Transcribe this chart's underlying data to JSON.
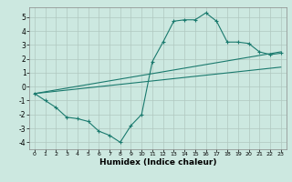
{
  "title": "",
  "xlabel": "Humidex (Indice chaleur)",
  "ylabel": "",
  "bg_color": "#cce8e0",
  "grid_color": "#b0c8c0",
  "line_color": "#1a7a6e",
  "xlim": [
    -0.5,
    23.5
  ],
  "ylim": [
    -4.5,
    5.7
  ],
  "xticks": [
    0,
    1,
    2,
    3,
    4,
    5,
    6,
    7,
    8,
    9,
    10,
    11,
    12,
    13,
    14,
    15,
    16,
    17,
    18,
    19,
    20,
    21,
    22,
    23
  ],
  "yticks": [
    -4,
    -3,
    -2,
    -1,
    0,
    1,
    2,
    3,
    4,
    5
  ],
  "series1_x": [
    0,
    1,
    2,
    3,
    4,
    5,
    6,
    7,
    8,
    9,
    10,
    11,
    12,
    13,
    14,
    15,
    16,
    17,
    18,
    19,
    20,
    21,
    22,
    23
  ],
  "series1_y": [
    -0.5,
    -1.0,
    -1.5,
    -2.2,
    -2.3,
    -2.5,
    -3.2,
    -3.5,
    -4.0,
    -2.8,
    -2.0,
    1.8,
    3.2,
    4.7,
    4.8,
    4.8,
    5.3,
    4.7,
    3.2,
    3.2,
    3.1,
    2.5,
    2.3,
    2.4
  ],
  "series2_x": [
    0,
    23
  ],
  "series2_y": [
    -0.5,
    2.5
  ],
  "series3_x": [
    0,
    23
  ],
  "series3_y": [
    -0.5,
    1.4
  ]
}
